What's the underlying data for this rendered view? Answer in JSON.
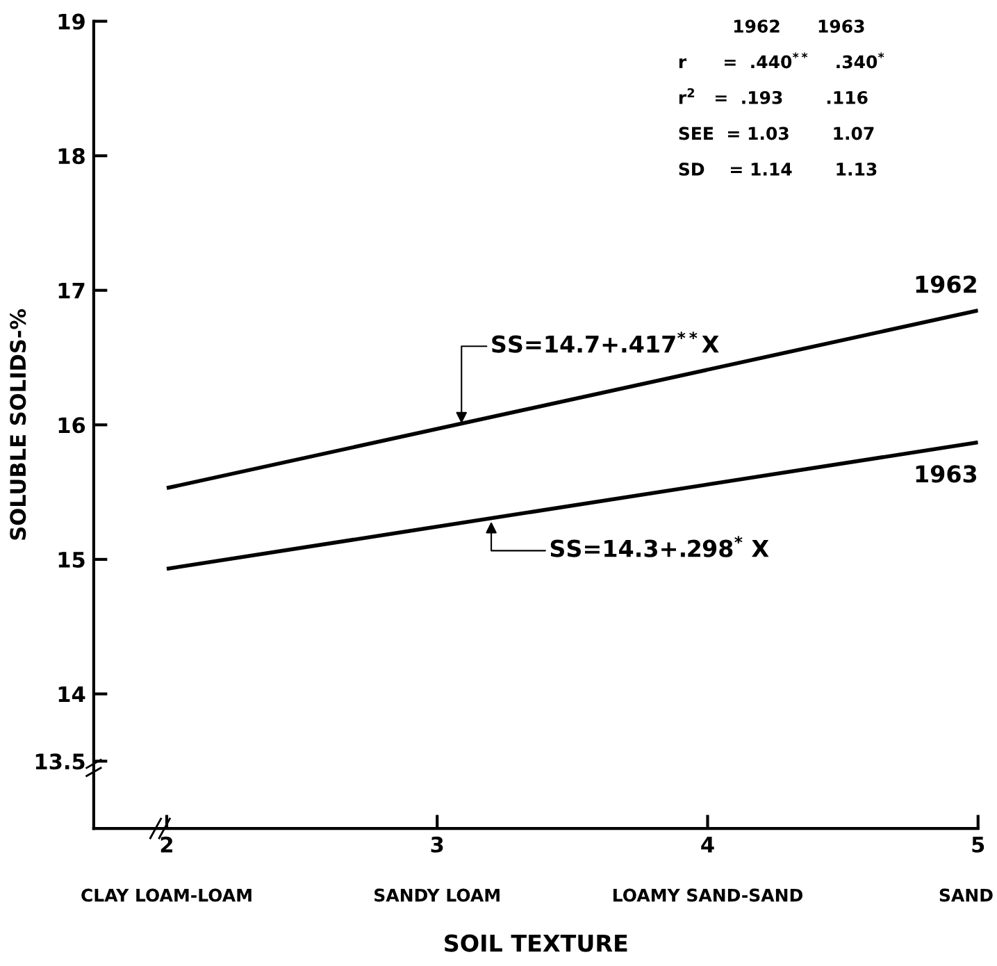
{
  "chart_data": {
    "type": "line",
    "xlabel": "SOIL TEXTURE",
    "ylabel": "SOLUBLE SOLIDS-%",
    "x": [
      2,
      5
    ],
    "series": [
      {
        "name": "1962",
        "color": "#000000",
        "values": [
          15.53,
          16.85
        ]
      },
      {
        "name": "1963",
        "color": "#000000",
        "values": [
          14.93,
          15.87
        ]
      }
    ],
    "xlim": [
      1.73,
      5.0
    ],
    "ylim": [
      13.0,
      19
    ],
    "xticks": [
      2,
      3,
      4,
      5
    ],
    "yticks": [
      13.5,
      14,
      15,
      16,
      17,
      18,
      19
    ],
    "grid": false,
    "legend": false,
    "marker": "none",
    "line_style": "solid",
    "annotations": [
      "CLAY LOAM-LOAM",
      "SANDY LOAM",
      "LOAMY SAND-SAND",
      "SAND",
      {
        "text": "SS=14.7+.417$^{**}$X",
        "x": 3.09,
        "y": 16.01
      },
      {
        "text": "SS=14.3+.298$^{*}$ X",
        "x": 3.2,
        "y": 15.28
      },
      "         1962      1963",
      "r      =  .440$^{**}$    .340$^{*}$",
      "r$^{2}$   =  .193       .116",
      "SEE  = 1.03       1.07",
      "SD    = 1.14       1.13"
    ]
  }
}
